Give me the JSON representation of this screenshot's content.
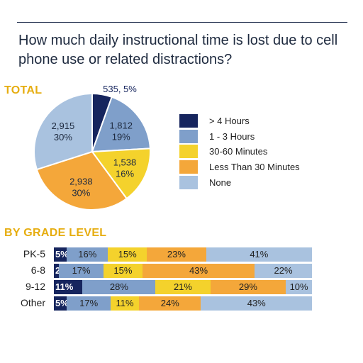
{
  "title": "How much daily instructional time is lost due to cell phone use or related distractions?",
  "total_heading": "TOTAL",
  "grade_heading": "BY GRADE LEVEL",
  "colors": {
    "gt4": "#16255e",
    "h1_3": "#7f9fca",
    "m30_60": "#f4d22c",
    "lt30": "#f4a73a",
    "none": "#a9c2df"
  },
  "chart_data": [
    {
      "type": "pie",
      "title": "TOTAL",
      "slices": [
        {
          "label": "> 4 Hours",
          "count": "535",
          "pct": "5%",
          "value": 535,
          "color_key": "gt4"
        },
        {
          "label": "1 - 3 Hours",
          "count": "1,812",
          "pct": "19%",
          "value": 1812,
          "color_key": "h1_3"
        },
        {
          "label": "30-60 Minutes",
          "count": "1,538",
          "pct": "16%",
          "value": 1538,
          "color_key": "m30_60"
        },
        {
          "label": "Less Than 30 Minutes",
          "count": "2,938",
          "pct": "30%",
          "value": 2938,
          "color_key": "lt30"
        },
        {
          "label": "None",
          "count": "2,915",
          "pct": "30%",
          "value": 2915,
          "color_key": "none"
        }
      ],
      "legend": [
        "> 4 Hours",
        "1 - 3 Hours",
        "30-60 Minutes",
        "Less Than 30 Minutes",
        "None"
      ]
    },
    {
      "type": "bar",
      "title": "BY GRADE LEVEL",
      "stacked": true,
      "orientation": "horizontal",
      "categories": [
        "PK-5",
        "6-8",
        "9-12",
        "Other"
      ],
      "series": [
        {
          "name": "> 4 Hours",
          "color_key": "gt4",
          "values": [
            5,
            2,
            11,
            5
          ]
        },
        {
          "name": "1 - 3 Hours",
          "color_key": "h1_3",
          "values": [
            16,
            17,
            28,
            17
          ]
        },
        {
          "name": "30-60 Minutes",
          "color_key": "m30_60",
          "values": [
            15,
            15,
            21,
            11
          ]
        },
        {
          "name": "Less Than 30 Minutes",
          "color_key": "lt30",
          "values": [
            23,
            43,
            29,
            24
          ]
        },
        {
          "name": "None",
          "color_key": "none",
          "values": [
            41,
            22,
            10,
            43
          ]
        }
      ],
      "labels": [
        [
          "5%",
          "16%",
          "15%",
          "23%",
          "41%"
        ],
        [
          "2%",
          "17%",
          "15%",
          "43%",
          "22%"
        ],
        [
          "11%",
          "28%",
          "21%",
          "29%",
          "10%"
        ],
        [
          "5%",
          "17%",
          "11%",
          "24%",
          "43%"
        ]
      ]
    }
  ]
}
